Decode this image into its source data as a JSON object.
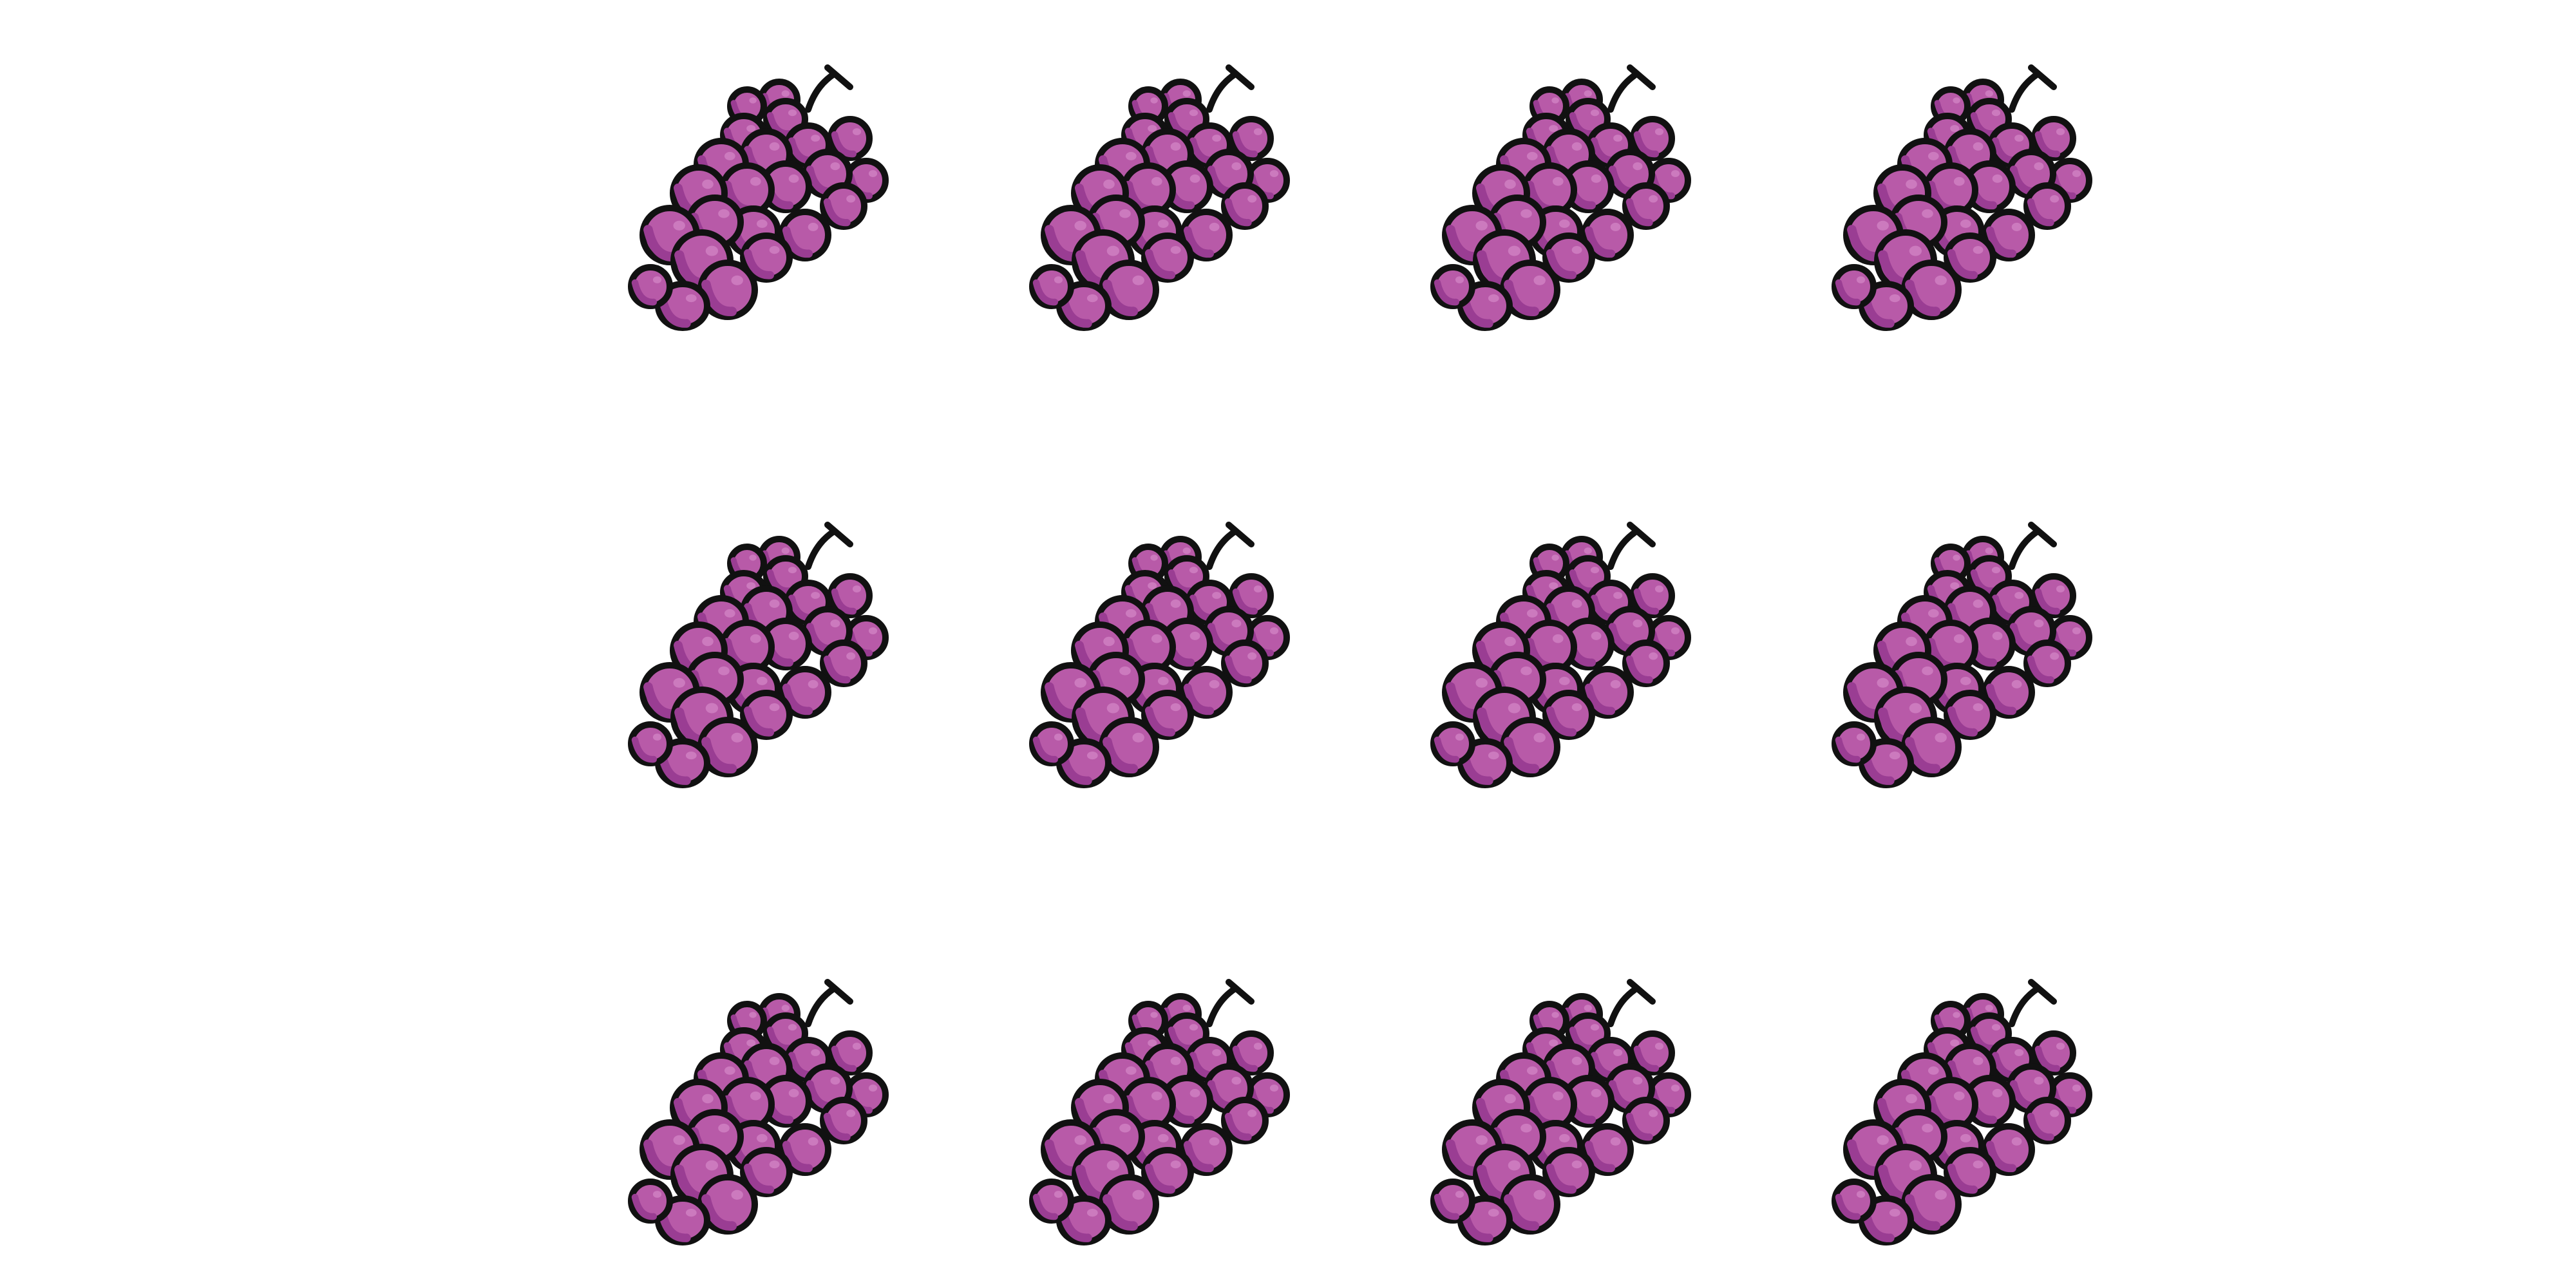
{
  "scene": {
    "background_color": "#ffffff",
    "icon_name": "grapes-icon",
    "rows": 3,
    "columns": 4,
    "total_count": 12,
    "colors": {
      "grape_fill": "#b85aa8",
      "grape_shade": "#9a3d93",
      "grape_highlight": "#d98fcd",
      "outline": "#111111"
    }
  }
}
